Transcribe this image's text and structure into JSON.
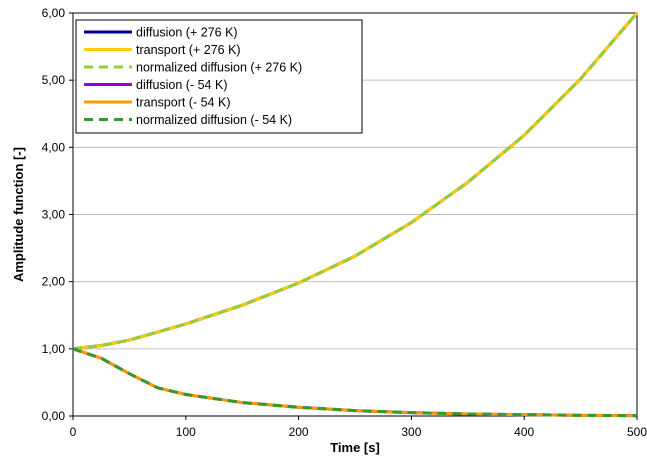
{
  "chart_data": {
    "type": "line",
    "xlabel": "Time [s]",
    "ylabel": "Amplitude function [-]",
    "xlim": [
      0,
      500
    ],
    "ylim": [
      0,
      6
    ],
    "x_ticks": [
      "0",
      "100",
      "200",
      "300",
      "400",
      "500"
    ],
    "y_ticks": [
      "0,00",
      "1,00",
      "2,00",
      "3,00",
      "4,00",
      "5,00",
      "6,00"
    ],
    "grid": "horizontal",
    "legend_position": "top-left",
    "x": [
      0,
      25,
      50,
      75,
      100,
      150,
      200,
      250,
      300,
      350,
      400,
      450,
      500
    ],
    "series": [
      {
        "name": "diffusion (+ 276 K)",
        "color": "#00008b",
        "dash": "solid",
        "values": [
          1.0,
          1.05,
          1.13,
          1.25,
          1.37,
          1.65,
          1.98,
          2.38,
          2.88,
          3.48,
          4.18,
          5.02,
          6.0
        ]
      },
      {
        "name": "transport (+ 276 K)",
        "color": "#ffcc00",
        "dash": "solid",
        "values": [
          1.0,
          1.05,
          1.13,
          1.25,
          1.37,
          1.65,
          1.98,
          2.38,
          2.88,
          3.48,
          4.18,
          5.02,
          6.0
        ]
      },
      {
        "name": "normalized diffusion (+ 276 K)",
        "color": "#99cc33",
        "dash": "dashed",
        "values": [
          1.0,
          1.05,
          1.13,
          1.25,
          1.37,
          1.65,
          1.98,
          2.38,
          2.88,
          3.48,
          4.18,
          5.02,
          6.0
        ]
      },
      {
        "name": "diffusion (- 54 K)",
        "color": "#9900cc",
        "dash": "solid",
        "values": [
          1.0,
          0.86,
          0.63,
          0.42,
          0.32,
          0.2,
          0.13,
          0.08,
          0.05,
          0.03,
          0.02,
          0.01,
          0.005
        ]
      },
      {
        "name": "transport (- 54 K)",
        "color": "#ff9900",
        "dash": "solid",
        "values": [
          1.0,
          0.86,
          0.63,
          0.42,
          0.32,
          0.2,
          0.13,
          0.08,
          0.05,
          0.03,
          0.02,
          0.01,
          0.005
        ]
      },
      {
        "name": "normalized diffusion (- 54 K)",
        "color": "#339933",
        "dash": "dashed",
        "values": [
          1.0,
          0.86,
          0.63,
          0.42,
          0.32,
          0.2,
          0.13,
          0.08,
          0.05,
          0.03,
          0.02,
          0.01,
          0.005
        ]
      }
    ]
  }
}
